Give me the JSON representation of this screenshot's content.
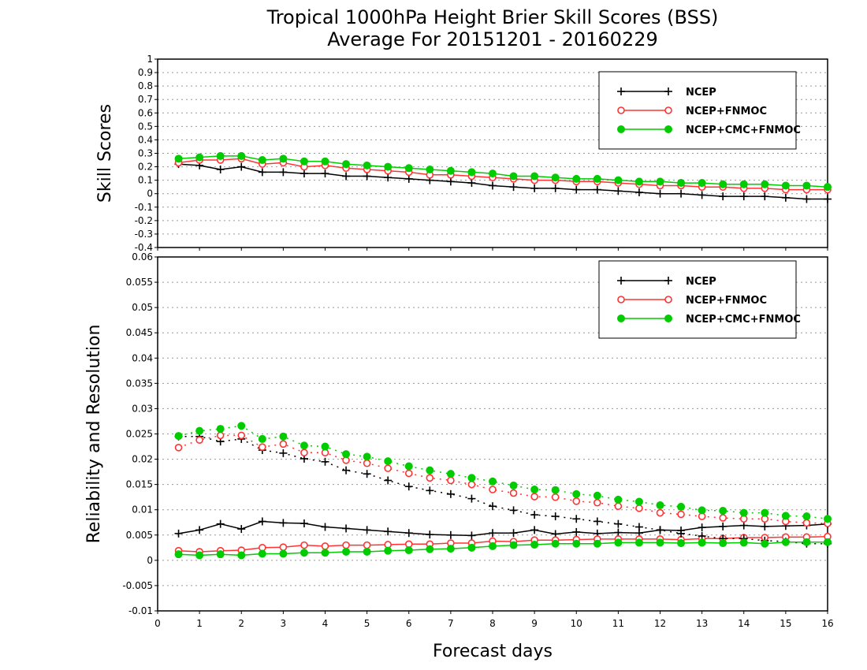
{
  "title_line1": "Tropical 1000hPa Height Brier Skill Scores (BSS)",
  "title_line2": "Average For 20151201 - 20160229",
  "xlabel": "Forecast days",
  "colors": {
    "NCEP": "#000000",
    "NCEP+FNMOC": "#ff3333",
    "NCEP+CMC+FNMOC": "#00cc00"
  },
  "chart_data": [
    {
      "type": "line",
      "panel": "top",
      "ylabel": "Skill Scores",
      "xlim": [
        0,
        16
      ],
      "ylim": [
        -0.4,
        1
      ],
      "x_ticks": [
        0,
        1,
        2,
        3,
        4,
        5,
        6,
        7,
        8,
        9,
        10,
        11,
        12,
        13,
        14,
        15,
        16
      ],
      "y_ticks": [
        -0.4,
        -0.3,
        -0.2,
        -0.1,
        0,
        0.1,
        0.2,
        0.3,
        0.4,
        0.5,
        0.6,
        0.7,
        0.8,
        0.9,
        1
      ],
      "y_tick_labels": [
        "-0.4",
        "-0.3",
        "-0.2",
        "-0.1",
        "0",
        "0.1",
        "0.2",
        "0.3",
        "0.4",
        "0.5",
        "0.6",
        "0.7",
        "0.8",
        "0.9",
        "1"
      ],
      "grid": true,
      "legend": "top-right",
      "x": [
        0.5,
        1,
        1.5,
        2,
        2.5,
        3,
        3.5,
        4,
        4.5,
        5,
        5.5,
        6,
        6.5,
        7,
        7.5,
        8,
        8.5,
        9,
        9.5,
        10,
        10.5,
        11,
        11.5,
        12,
        12.5,
        13,
        13.5,
        14,
        14.5,
        15,
        15.5,
        16
      ],
      "series": [
        {
          "name": "NCEP",
          "marker": "plus",
          "linestyle": "solid",
          "values": [
            0.22,
            0.21,
            0.18,
            0.2,
            0.16,
            0.16,
            0.15,
            0.15,
            0.13,
            0.13,
            0.12,
            0.11,
            0.1,
            0.09,
            0.08,
            0.06,
            0.05,
            0.04,
            0.04,
            0.03,
            0.03,
            0.02,
            0.01,
            0.0,
            0.0,
            -0.01,
            -0.02,
            -0.02,
            -0.02,
            -0.03,
            -0.04,
            -0.04
          ]
        },
        {
          "name": "NCEP+FNMOC",
          "marker": "open-circle",
          "linestyle": "solid",
          "values": [
            0.23,
            0.25,
            0.25,
            0.26,
            0.22,
            0.23,
            0.2,
            0.21,
            0.19,
            0.18,
            0.17,
            0.16,
            0.14,
            0.14,
            0.13,
            0.12,
            0.11,
            0.1,
            0.1,
            0.09,
            0.09,
            0.08,
            0.07,
            0.06,
            0.06,
            0.05,
            0.05,
            0.04,
            0.04,
            0.03,
            0.03,
            0.03
          ]
        },
        {
          "name": "NCEP+CMC+FNMOC",
          "marker": "filled-circle",
          "linestyle": "solid",
          "values": [
            0.26,
            0.27,
            0.28,
            0.28,
            0.25,
            0.26,
            0.24,
            0.24,
            0.22,
            0.21,
            0.2,
            0.19,
            0.18,
            0.17,
            0.16,
            0.15,
            0.13,
            0.13,
            0.12,
            0.11,
            0.11,
            0.1,
            0.09,
            0.09,
            0.08,
            0.08,
            0.07,
            0.07,
            0.07,
            0.06,
            0.06,
            0.05
          ]
        }
      ]
    },
    {
      "type": "line",
      "panel": "bottom",
      "ylabel": "Reliability and Resolution",
      "xlim": [
        0,
        16
      ],
      "ylim": [
        -0.01,
        0.06
      ],
      "x_ticks": [
        0,
        1,
        2,
        3,
        4,
        5,
        6,
        7,
        8,
        9,
        10,
        11,
        12,
        13,
        14,
        15,
        16
      ],
      "y_ticks": [
        -0.01,
        -0.005,
        0,
        0.005,
        0.01,
        0.015,
        0.02,
        0.025,
        0.03,
        0.035,
        0.04,
        0.045,
        0.05,
        0.055,
        0.06
      ],
      "y_tick_labels": [
        "-0.01",
        "-0.005",
        "0",
        "0.005",
        "0.01",
        "0.015",
        "0.02",
        "0.025",
        "0.03",
        "0.035",
        "0.04",
        "0.045",
        "0.05",
        "0.055",
        "0.06"
      ],
      "grid": true,
      "legend": "top-right",
      "x": [
        0.5,
        1,
        1.5,
        2,
        2.5,
        3,
        3.5,
        4,
        4.5,
        5,
        5.5,
        6,
        6.5,
        7,
        7.5,
        8,
        8.5,
        9,
        9.5,
        10,
        10.5,
        11,
        11.5,
        12,
        12.5,
        13,
        13.5,
        14,
        14.5,
        15,
        15.5,
        16
      ],
      "series": [
        {
          "name": "NCEP",
          "marker": "plus",
          "linestyle": "solid",
          "values": [
            0.0053,
            0.006,
            0.0072,
            0.0062,
            0.0077,
            0.0074,
            0.0073,
            0.0066,
            0.0063,
            0.006,
            0.0057,
            0.0054,
            0.0051,
            0.005,
            0.0049,
            0.0054,
            0.0054,
            0.006,
            0.0052,
            0.0056,
            0.0053,
            0.0055,
            0.0054,
            0.006,
            0.0059,
            0.0065,
            0.0067,
            0.0069,
            0.0067,
            0.0068,
            0.0069,
            0.0072
          ]
        },
        {
          "name": "NCEP+FNMOC",
          "marker": "open-circle",
          "linestyle": "solid",
          "values": [
            0.0019,
            0.0017,
            0.0019,
            0.002,
            0.0025,
            0.0026,
            0.003,
            0.0028,
            0.003,
            0.003,
            0.0031,
            0.0032,
            0.0032,
            0.0034,
            0.0034,
            0.0038,
            0.0037,
            0.004,
            0.004,
            0.0041,
            0.0042,
            0.0042,
            0.0042,
            0.0042,
            0.0041,
            0.0043,
            0.0043,
            0.0045,
            0.0045,
            0.0046,
            0.0046,
            0.0047
          ]
        },
        {
          "name": "NCEP",
          "marker": "plus",
          "linestyle": "dotted",
          "values": [
            0.0245,
            0.0245,
            0.0235,
            0.024,
            0.0218,
            0.0212,
            0.0201,
            0.0195,
            0.0178,
            0.0171,
            0.0158,
            0.0146,
            0.0138,
            0.0131,
            0.0122,
            0.0107,
            0.0099,
            0.009,
            0.0087,
            0.0082,
            0.0077,
            0.0072,
            0.0066,
            0.006,
            0.0053,
            0.0048,
            0.0043,
            0.0043,
            0.0039,
            0.0037,
            0.0033,
            0.0033
          ]
        },
        {
          "name": "NCEP+FNMOC",
          "marker": "open-circle",
          "linestyle": "dotted",
          "values": [
            0.0223,
            0.0238,
            0.0247,
            0.0247,
            0.0224,
            0.023,
            0.0213,
            0.0213,
            0.0198,
            0.0192,
            0.0182,
            0.0172,
            0.0163,
            0.0158,
            0.015,
            0.014,
            0.0133,
            0.0126,
            0.0125,
            0.0117,
            0.0114,
            0.0107,
            0.0103,
            0.0094,
            0.0091,
            0.0087,
            0.0084,
            0.0082,
            0.0082,
            0.0077,
            0.0074,
            0.0073
          ]
        },
        {
          "name": "NCEP+CMC+FNMOC",
          "marker": "filled-circle",
          "linestyle": "solid",
          "values": [
            0.0012,
            0.001,
            0.0012,
            0.001,
            0.0013,
            0.0013,
            0.0015,
            0.0015,
            0.0017,
            0.0017,
            0.0019,
            0.002,
            0.0022,
            0.0023,
            0.0025,
            0.0028,
            0.003,
            0.0031,
            0.0033,
            0.0033,
            0.0033,
            0.0035,
            0.0035,
            0.0035,
            0.0034,
            0.0035,
            0.0034,
            0.0035,
            0.0033,
            0.0036,
            0.0036,
            0.0036
          ]
        },
        {
          "name": "NCEP+CMC+FNMOC",
          "marker": "filled-circle",
          "linestyle": "dotted",
          "values": [
            0.0246,
            0.0256,
            0.026,
            0.0266,
            0.024,
            0.0245,
            0.0227,
            0.0225,
            0.021,
            0.0205,
            0.0196,
            0.0186,
            0.0178,
            0.0171,
            0.0163,
            0.0156,
            0.0148,
            0.014,
            0.0139,
            0.0131,
            0.0128,
            0.012,
            0.0116,
            0.0109,
            0.0106,
            0.0099,
            0.0098,
            0.0094,
            0.0094,
            0.0088,
            0.0087,
            0.0082
          ]
        }
      ]
    }
  ]
}
